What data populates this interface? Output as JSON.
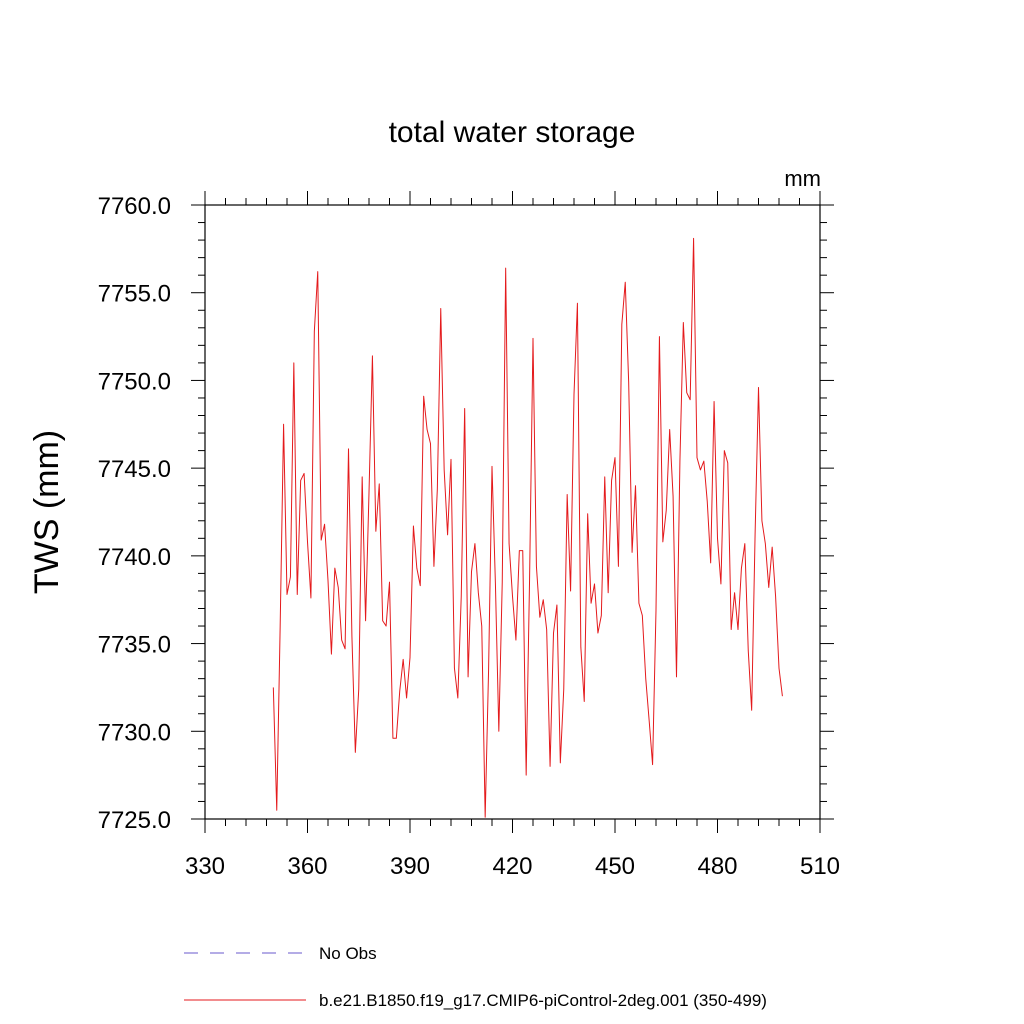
{
  "chart_data": {
    "type": "line",
    "title": "total water storage",
    "units": "mm",
    "ylabel": "TWS  (mm)",
    "xlabel": "",
    "xlim": [
      330,
      510
    ],
    "ylim": [
      7725.0,
      7760.0
    ],
    "xticks": [
      330,
      360,
      390,
      420,
      450,
      480,
      510
    ],
    "xtick_labels": [
      "330",
      "360",
      "390",
      "420",
      "450",
      "480",
      "510"
    ],
    "yticks": [
      7725.0,
      7730.0,
      7735.0,
      7740.0,
      7745.0,
      7750.0,
      7755.0,
      7760.0
    ],
    "ytick_labels": [
      "7725.0",
      "7730.0",
      "7735.0",
      "7740.0",
      "7745.0",
      "7750.0",
      "7755.0",
      "7760.0"
    ],
    "series": [
      {
        "name": "b.e21.B1850.f19_g17.CMIP6-piControl-2deg.001 (350-499)",
        "color": "#e41a1c",
        "dash": "solid",
        "x_start": 350,
        "x_step": 1,
        "values": [
          7732.5,
          7725.5,
          7736.0,
          7747.5,
          7737.8,
          7738.8,
          7751.0,
          7737.8,
          7744.3,
          7744.7,
          7740.8,
          7737.6,
          7752.8,
          7756.2,
          7740.9,
          7741.8,
          7738.6,
          7734.4,
          7739.3,
          7738.2,
          7735.2,
          7734.7,
          7746.1,
          7735.4,
          7728.8,
          7732.4,
          7744.5,
          7736.3,
          7743.6,
          7751.4,
          7741.4,
          7744.1,
          7736.3,
          7736.0,
          7738.5,
          7729.6,
          7729.6,
          7732.3,
          7734.1,
          7731.9,
          7734.2,
          7741.7,
          7739.3,
          7738.3,
          7749.1,
          7747.2,
          7746.4,
          7739.4,
          7743.8,
          7754.1,
          7744.9,
          7741.2,
          7745.5,
          7733.6,
          7731.9,
          7737.7,
          7748.4,
          7733.1,
          7739.1,
          7740.7,
          7737.9,
          7736.0,
          7725.1,
          7733.5,
          7745.1,
          7738.4,
          7730.0,
          7738.5,
          7756.4,
          7740.7,
          7737.7,
          7735.2,
          7740.3,
          7740.3,
          7727.5,
          7738.7,
          7752.4,
          7739.4,
          7736.5,
          7737.5,
          7735.8,
          7728.0,
          7735.6,
          7737.2,
          7728.2,
          7732.4,
          7743.5,
          7738.0,
          7749.2,
          7754.4,
          7734.8,
          7731.7,
          7742.4,
          7737.3,
          7738.4,
          7735.6,
          7736.6,
          7744.5,
          7737.9,
          7744.3,
          7745.6,
          7739.4,
          7753.2,
          7755.6,
          7749.9,
          7740.2,
          7744.0,
          7737.3,
          7736.6,
          7733.0,
          7730.6,
          7728.1,
          7736.9,
          7752.5,
          7740.8,
          7742.6,
          7747.2,
          7743.4,
          7733.1,
          7745.4,
          7753.3,
          7749.3,
          7748.9,
          7758.1,
          7745.6,
          7744.9,
          7745.4,
          7743.1,
          7739.6,
          7748.8,
          7741.0,
          7738.4,
          7746.0,
          7745.3,
          7735.8,
          7737.9,
          7735.8,
          7739.3,
          7740.7,
          7734.6,
          7731.2,
          7741.2,
          7749.6,
          7742.0,
          7740.7,
          7738.2,
          7740.5,
          7737.7,
          7733.6,
          7732.0
        ]
      }
    ],
    "legend": [
      {
        "label": "No Obs",
        "color": "#6a5acd",
        "dash": "dashed"
      },
      {
        "label": "b.e21.B1850.f19_g17.CMIP6-piControl-2deg.001 (350-499)",
        "color": "#e41a1c",
        "dash": "solid"
      }
    ]
  }
}
